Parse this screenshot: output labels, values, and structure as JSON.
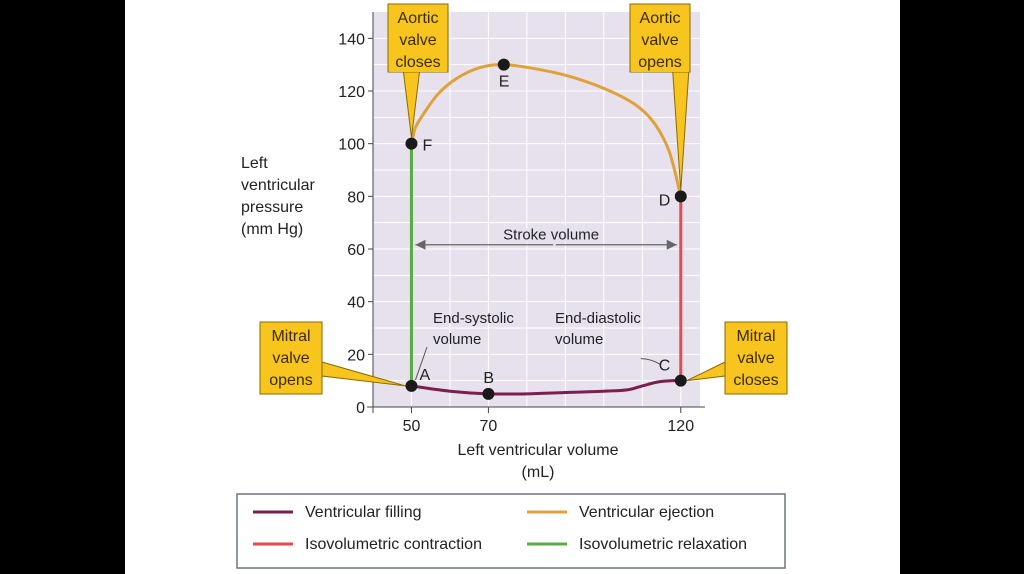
{
  "chart_data": {
    "type": "line",
    "title": "",
    "xlabel": "Left ventricular volume (mL)",
    "xlabel_lines": [
      "Left ventricular volume",
      "(mL)"
    ],
    "ylabel": "Left ventricular pressure (mm Hg)",
    "ylabel_lines": [
      "Left",
      "ventricular",
      "pressure",
      "(mm Hg)"
    ],
    "xlim": [
      40,
      125
    ],
    "ylim": [
      0,
      150
    ],
    "x_ticks": [
      50,
      70,
      120
    ],
    "y_ticks": [
      0,
      20,
      40,
      60,
      80,
      100,
      120,
      140
    ],
    "grid": true,
    "background": "#e6e1ed",
    "points": [
      {
        "label": "A",
        "x": 50,
        "y": 8
      },
      {
        "label": "B",
        "x": 70,
        "y": 5
      },
      {
        "label": "C",
        "x": 120,
        "y": 10
      },
      {
        "label": "D",
        "x": 120,
        "y": 80
      },
      {
        "label": "E",
        "x": 74,
        "y": 130
      },
      {
        "label": "F",
        "x": 50,
        "y": 100
      }
    ],
    "series": [
      {
        "name": "Ventricular filling",
        "color": "#7a1f4f",
        "x": [
          50,
          60,
          70,
          80,
          90,
          100,
          106,
          110,
          114,
          118,
          120
        ],
        "y": [
          8,
          6,
          5,
          5,
          5.5,
          6,
          6.5,
          8,
          9.5,
          10,
          10
        ]
      },
      {
        "name": "Isovolumetric contraction",
        "color": "#e8484f",
        "x": [
          120,
          120
        ],
        "y": [
          10,
          80
        ]
      },
      {
        "name": "Ventricular ejection",
        "color": "#e0a03a",
        "x": [
          120,
          117,
          113,
          108,
          100,
          90,
          80,
          74,
          68,
          62,
          57,
          53,
          51,
          50
        ],
        "y": [
          80,
          97,
          108,
          115,
          121,
          126,
          129,
          130,
          129,
          125,
          119,
          111,
          106,
          100
        ]
      },
      {
        "name": "Isovolumetric relaxation",
        "color": "#5aab45",
        "x": [
          50,
          50
        ],
        "y": [
          100,
          8
        ]
      }
    ],
    "annotations": {
      "stroke_volume": {
        "text": "Stroke volume",
        "x_from": 50,
        "x_to": 120,
        "y": 62
      },
      "end_systolic": {
        "lines": [
          "End-systolic",
          "volume"
        ]
      },
      "end_diastolic": {
        "lines": [
          "End-diastolic",
          "volume"
        ]
      }
    },
    "callouts": [
      {
        "id": "aortic-closes",
        "lines": [
          "Aortic",
          "valve",
          "closes"
        ],
        "target_x": 50,
        "target_y": 100
      },
      {
        "id": "aortic-opens",
        "lines": [
          "Aortic",
          "valve",
          "opens"
        ],
        "target_x": 120,
        "target_y": 80
      },
      {
        "id": "mitral-opens",
        "lines": [
          "Mitral",
          "valve",
          "opens"
        ],
        "target_x": 50,
        "target_y": 8
      },
      {
        "id": "mitral-closes",
        "lines": [
          "Mitral",
          "valve",
          "closes"
        ],
        "target_x": 120,
        "target_y": 10
      }
    ],
    "legend": {
      "position": "bottom",
      "entries": [
        {
          "label": "Ventricular filling",
          "color": "#7a1f4f"
        },
        {
          "label": "Ventricular ejection",
          "color": "#e0a03a"
        },
        {
          "label": "Isovolumetric contraction",
          "color": "#e8484f"
        },
        {
          "label": "Isovolumetric relaxation",
          "color": "#5aab45"
        }
      ]
    },
    "callout_fill": "#f7c51e"
  }
}
